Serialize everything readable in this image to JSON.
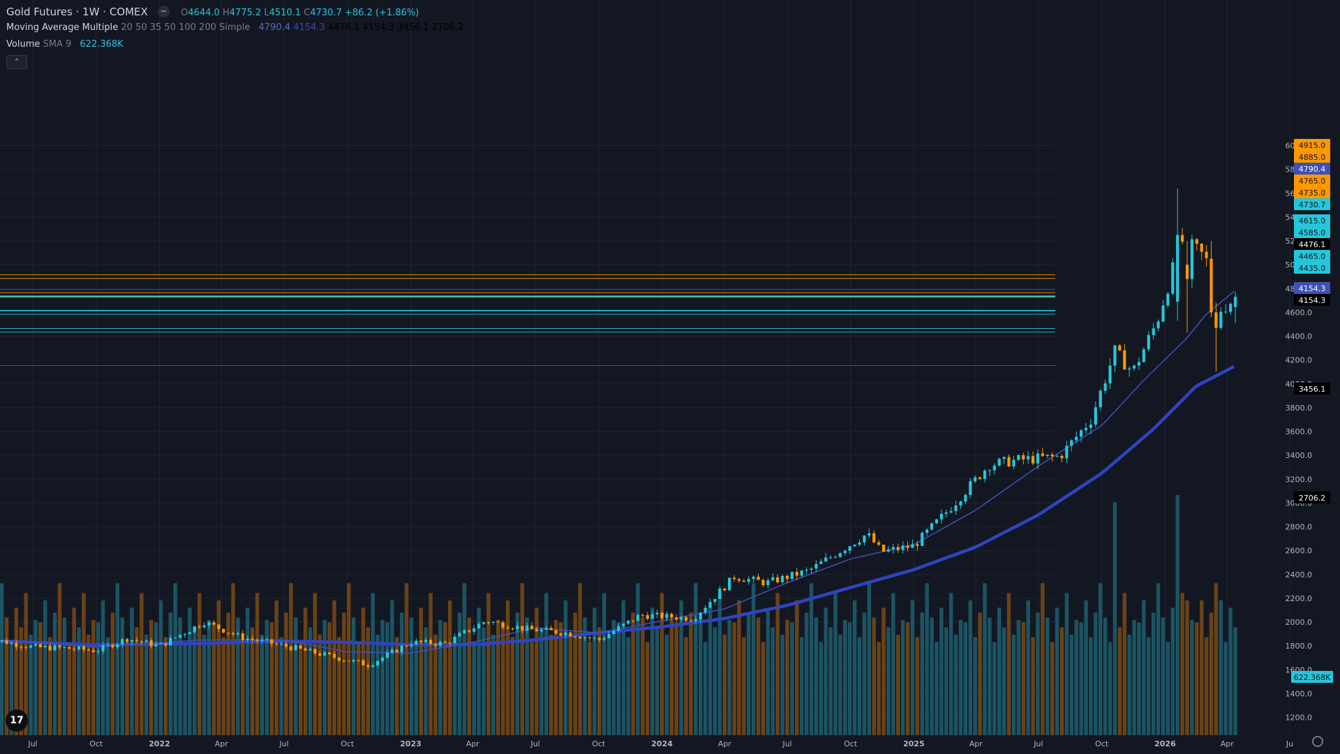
{
  "header": {
    "symbol": "Gold Futures · 1W · COMEX",
    "o_label": "O",
    "o_value": "4644.0",
    "h_label": "H",
    "h_value": "4775.2",
    "l_label": "L",
    "l_value": "4510.1",
    "c_label": "C",
    "c_value": "4730.7",
    "change": "+86.2 (+1.86%)"
  },
  "indicators": {
    "ma_name": "Moving Average Multiple",
    "ma_params": "20 50 35 50 100 200 Simple",
    "ma_values": [
      "4790.4",
      "4154.3",
      "4476.1",
      "4154.3",
      "3456.1",
      "2706.2"
    ],
    "volume_name": "Volume",
    "volume_params": "SMA 9",
    "volume_value": "622.368K",
    "collapse_icon": "chevron-up-icon"
  },
  "colors": {
    "background": "#131722",
    "up": "#26c6da",
    "down": "#ff9800",
    "ma_fast": "#3f51b5",
    "ma_slow": "#2f44c0",
    "grid": "#1f2432"
  },
  "chart_data": {
    "type": "candlestick",
    "interval": "1W",
    "x_tick_labels": [
      "Jul",
      "Oct",
      "2022",
      "Apr",
      "Jul",
      "Oct",
      "2023",
      "Apr",
      "Jul",
      "Oct",
      "2024",
      "Apr",
      "Jul",
      "Oct",
      "2025",
      "Apr",
      "Jul",
      "Oct",
      "2026",
      "Apr",
      "Ju"
    ],
    "y_tick_labels": [
      1200,
      1400,
      1600,
      1800,
      2000,
      2200,
      2400,
      2600,
      2800,
      3000,
      3200,
      3400,
      3600,
      3800,
      4000,
      4200,
      4400,
      4600,
      4800,
      5000,
      5200,
      5400,
      5600,
      5800,
      6000
    ],
    "ylim": [
      1075,
      6130
    ],
    "close_anchors": [
      [
        "2021-05-15",
        1840
      ],
      [
        "2021-07-01",
        1790
      ],
      [
        "2021-08-20",
        1780
      ],
      [
        "2021-10-01",
        1760
      ],
      [
        "2021-11-15",
        1860
      ],
      [
        "2022-01-01",
        1800
      ],
      [
        "2022-03-07",
        2000
      ],
      [
        "2022-05-01",
        1870
      ],
      [
        "2022-07-01",
        1800
      ],
      [
        "2022-09-01",
        1720
      ],
      [
        "2022-11-01",
        1640
      ],
      [
        "2023-01-01",
        1830
      ],
      [
        "2023-02-20",
        1820
      ],
      [
        "2023-04-20",
        2010
      ],
      [
        "2023-06-20",
        1940
      ],
      [
        "2023-08-15",
        1910
      ],
      [
        "2023-10-01",
        1850
      ],
      [
        "2023-12-01",
        2060
      ],
      [
        "2024-02-15",
        2030
      ],
      [
        "2024-04-15",
        2380
      ],
      [
        "2024-06-01",
        2330
      ],
      [
        "2024-08-01",
        2430
      ],
      [
        "2024-10-25",
        2740
      ],
      [
        "2024-11-15",
        2590
      ],
      [
        "2025-01-01",
        2640
      ],
      [
        "2025-02-20",
        2940
      ],
      [
        "2025-04-20",
        3320
      ],
      [
        "2025-06-01",
        3360
      ],
      [
        "2025-08-01",
        3390
      ],
      [
        "2025-09-15",
        3700
      ],
      [
        "2025-10-20",
        4270
      ],
      [
        "2025-11-15",
        4100
      ],
      [
        "2025-12-20",
        4520
      ],
      [
        "2026-01-25",
        5200
      ],
      [
        "2026-02-20",
        5100
      ],
      [
        "2026-03-01",
        5050
      ],
      [
        "2026-03-22",
        4620
      ],
      [
        "2026-04-14",
        4730
      ]
    ],
    "ma_fast_anchors": [
      [
        "2021-05-15",
        1850
      ],
      [
        "2021-10-01",
        1790
      ],
      [
        "2022-03-01",
        1850
      ],
      [
        "2022-07-01",
        1850
      ],
      [
        "2022-10-01",
        1750
      ],
      [
        "2023-01-01",
        1740
      ],
      [
        "2023-04-01",
        1830
      ],
      [
        "2023-07-01",
        1950
      ],
      [
        "2023-10-01",
        1910
      ],
      [
        "2024-01-01",
        2010
      ],
      [
        "2024-04-01",
        2110
      ],
      [
        "2024-07-01",
        2330
      ],
      [
        "2024-10-01",
        2530
      ],
      [
        "2025-01-01",
        2650
      ],
      [
        "2025-04-01",
        2940
      ],
      [
        "2025-07-01",
        3310
      ],
      [
        "2025-10-01",
        3650
      ],
      [
        "2025-12-01",
        4030
      ],
      [
        "2026-02-01",
        4380
      ],
      [
        "2026-03-01",
        4580
      ],
      [
        "2026-04-14",
        4790
      ]
    ],
    "ma_slow_anchors": [
      [
        "2021-05-15",
        1840
      ],
      [
        "2021-10-01",
        1810
      ],
      [
        "2022-03-01",
        1820
      ],
      [
        "2022-07-01",
        1840
      ],
      [
        "2022-10-01",
        1830
      ],
      [
        "2023-01-01",
        1810
      ],
      [
        "2023-04-01",
        1810
      ],
      [
        "2023-07-01",
        1850
      ],
      [
        "2023-10-01",
        1910
      ],
      [
        "2024-01-01",
        1960
      ],
      [
        "2024-04-01",
        2030
      ],
      [
        "2024-07-01",
        2140
      ],
      [
        "2024-10-01",
        2290
      ],
      [
        "2025-01-01",
        2440
      ],
      [
        "2025-04-01",
        2630
      ],
      [
        "2025-07-01",
        2900
      ],
      [
        "2025-10-01",
        3250
      ],
      [
        "2025-12-15",
        3620
      ],
      [
        "2026-02-15",
        3980
      ],
      [
        "2026-04-14",
        4154
      ]
    ],
    "highlight_candles": [
      {
        "date": "2026-01-19",
        "open": 4690,
        "high": 5640,
        "low": 4530,
        "close": 5250
      },
      {
        "date": "2026-02-02",
        "open": 5000,
        "high": 5200,
        "low": 4430,
        "close": 4880
      },
      {
        "date": "2026-03-09",
        "open": 5050,
        "high": 5200,
        "low": 4560,
        "close": 4600
      },
      {
        "date": "2026-03-16",
        "open": 4600,
        "high": 4680,
        "low": 4100,
        "close": 4470
      }
    ],
    "volume_pattern": [
      0.46,
      0.55,
      0.4,
      0.5,
      0.62,
      0.48,
      0.38,
      0.52,
      0.44,
      0.58,
      0.41,
      0.47
    ],
    "volume_peaks": [
      [
        "2025-10-20",
        0.95
      ],
      [
        "2026-01-19",
        0.98
      ],
      [
        "2026-02-02",
        0.55
      ],
      [
        "2026-03-22",
        0.55
      ]
    ],
    "price_lines": [
      {
        "price": 4915.0,
        "label": "4915.0",
        "color": "#ff9800",
        "text": "#131722"
      },
      {
        "price": 4885.0,
        "label": "4885.0",
        "color": "#ff9800",
        "text": "#131722"
      },
      {
        "price": 4790.4,
        "label": "4790.4",
        "color": "#3f51b5",
        "text": "#ffffff"
      },
      {
        "price": 4765.0,
        "label": "4765.0",
        "color": "#ff9800",
        "text": "#131722"
      },
      {
        "price": 4735.0,
        "label": "4735.0",
        "color": "#ff9800",
        "text": "#131722"
      },
      {
        "price": 4730.7,
        "label": "4730.7",
        "color": "#26c6da",
        "text": "#131722"
      },
      {
        "price": 4615.0,
        "label": "4615.0",
        "color": "#26c6da",
        "text": "#131722"
      },
      {
        "price": 4585.0,
        "label": "4585.0",
        "color": "#26c6da",
        "text": "#131722"
      },
      {
        "price": 4476.1,
        "label": "4476.1",
        "color": "#000000",
        "text": "#ffffff"
      },
      {
        "price": 4465.0,
        "label": "4465.0",
        "color": "#26c6da",
        "text": "#131722"
      },
      {
        "price": 4435.0,
        "label": "4435.0",
        "color": "#26c6da",
        "text": "#131722"
      },
      {
        "price": 4154.3,
        "label": "4154.3",
        "color": "#3f51b5",
        "text": "#ffffff"
      },
      {
        "price": 4154.3,
        "label": "4154.3",
        "color": "#000000",
        "text": "#ffffff"
      },
      {
        "price": 3456.1,
        "label": "3456.1",
        "color": "#000000",
        "text": "#ffffff"
      },
      {
        "price": 2706.2,
        "label": "2706.2",
        "color": "#000000",
        "text": "#ffffff"
      }
    ],
    "volume_badge": {
      "label": "622.368K",
      "color": "#26c6da"
    }
  }
}
